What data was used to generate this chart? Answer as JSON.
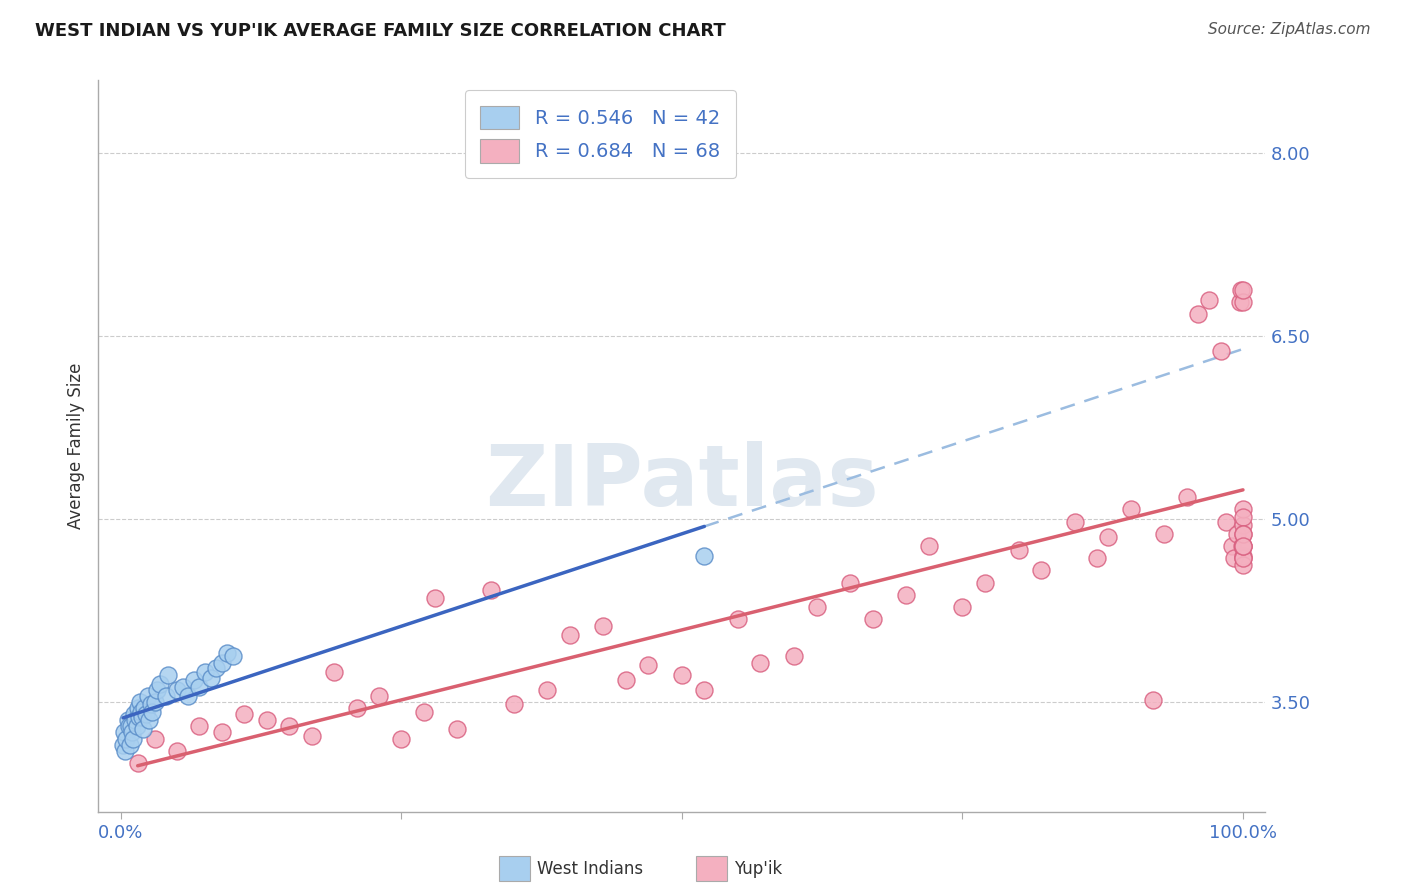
{
  "title": "WEST INDIAN VS YUP'IK AVERAGE FAMILY SIZE CORRELATION CHART",
  "source": "Source: ZipAtlas.com",
  "ylabel": "Average Family Size",
  "xlim": [
    -2,
    102
  ],
  "ylim": [
    2.6,
    8.6
  ],
  "yticks": [
    3.5,
    5.0,
    6.5,
    8.0
  ],
  "xtick_positions": [
    0,
    25,
    50,
    75,
    100
  ],
  "xtick_labels": [
    "0.0%",
    "",
    "",
    "",
    "100.0%"
  ],
  "R_wi": 0.546,
  "N_wi": 42,
  "R_yp": 0.684,
  "N_yp": 68,
  "wi_color_face": "#A8CFEF",
  "wi_color_edge": "#5B8EC9",
  "yp_color_face": "#F4B0C0",
  "yp_color_edge": "#D96080",
  "wi_line_color": "#3B65C0",
  "yp_line_color": "#D96070",
  "dash_line_color": "#9BBCE0",
  "grid_color": "#CCCCCC",
  "axis_label_color": "#4472C4",
  "title_color": "#1a1a1a",
  "source_color": "#555555",
  "wi_x": [
    0.2,
    0.3,
    0.4,
    0.5,
    0.6,
    0.7,
    0.8,
    0.9,
    1.0,
    1.1,
    1.2,
    1.3,
    1.4,
    1.5,
    1.6,
    1.7,
    1.8,
    1.9,
    2.0,
    2.1,
    2.2,
    2.4,
    2.5,
    2.7,
    2.8,
    3.0,
    3.2,
    3.5,
    4.0,
    4.2,
    5.0,
    5.5,
    6.0,
    6.5,
    7.0,
    7.5,
    8.0,
    8.5,
    9.0,
    9.5,
    10.0,
    52.0
  ],
  "wi_y": [
    3.15,
    3.25,
    3.1,
    3.2,
    3.35,
    3.3,
    3.15,
    3.3,
    3.25,
    3.2,
    3.4,
    3.35,
    3.3,
    3.45,
    3.38,
    3.5,
    3.42,
    3.38,
    3.28,
    3.45,
    3.4,
    3.55,
    3.35,
    3.48,
    3.42,
    3.5,
    3.6,
    3.65,
    3.55,
    3.72,
    3.6,
    3.62,
    3.55,
    3.68,
    3.62,
    3.75,
    3.7,
    3.78,
    3.82,
    3.9,
    3.88,
    4.7
  ],
  "yp_x": [
    1.5,
    3.0,
    5.0,
    7.0,
    9.0,
    11.0,
    13.0,
    15.0,
    17.0,
    19.0,
    21.0,
    23.0,
    25.0,
    27.0,
    28.0,
    30.0,
    33.0,
    35.0,
    38.0,
    40.0,
    43.0,
    45.0,
    47.0,
    50.0,
    52.0,
    55.0,
    57.0,
    60.0,
    62.0,
    65.0,
    67.0,
    70.0,
    72.0,
    75.0,
    77.0,
    80.0,
    82.0,
    85.0,
    87.0,
    88.0,
    90.0,
    92.0,
    93.0,
    95.0,
    96.0,
    97.0,
    98.0,
    98.5,
    99.0,
    99.2,
    99.5,
    99.7,
    99.8,
    99.9,
    100.0,
    100.0,
    100.0,
    100.0,
    100.0,
    100.0,
    100.0,
    100.0,
    100.0,
    100.0,
    100.0,
    100.0,
    100.0,
    100.0
  ],
  "yp_y": [
    3.0,
    3.2,
    3.1,
    3.3,
    3.25,
    3.4,
    3.35,
    3.3,
    3.22,
    3.75,
    3.45,
    3.55,
    3.2,
    3.42,
    4.35,
    3.28,
    4.42,
    3.48,
    3.6,
    4.05,
    4.12,
    3.68,
    3.8,
    3.72,
    3.6,
    4.18,
    3.82,
    3.88,
    4.28,
    4.48,
    4.18,
    4.38,
    4.78,
    4.28,
    4.48,
    4.75,
    4.58,
    4.98,
    4.68,
    4.85,
    5.08,
    3.52,
    4.88,
    5.18,
    6.68,
    6.8,
    6.38,
    4.98,
    4.78,
    4.68,
    4.88,
    6.78,
    6.88,
    4.78,
    4.68,
    6.78,
    6.88,
    4.7,
    4.62,
    4.78,
    4.68,
    4.95,
    5.08,
    5.02,
    4.88,
    4.78,
    4.88,
    4.78
  ]
}
